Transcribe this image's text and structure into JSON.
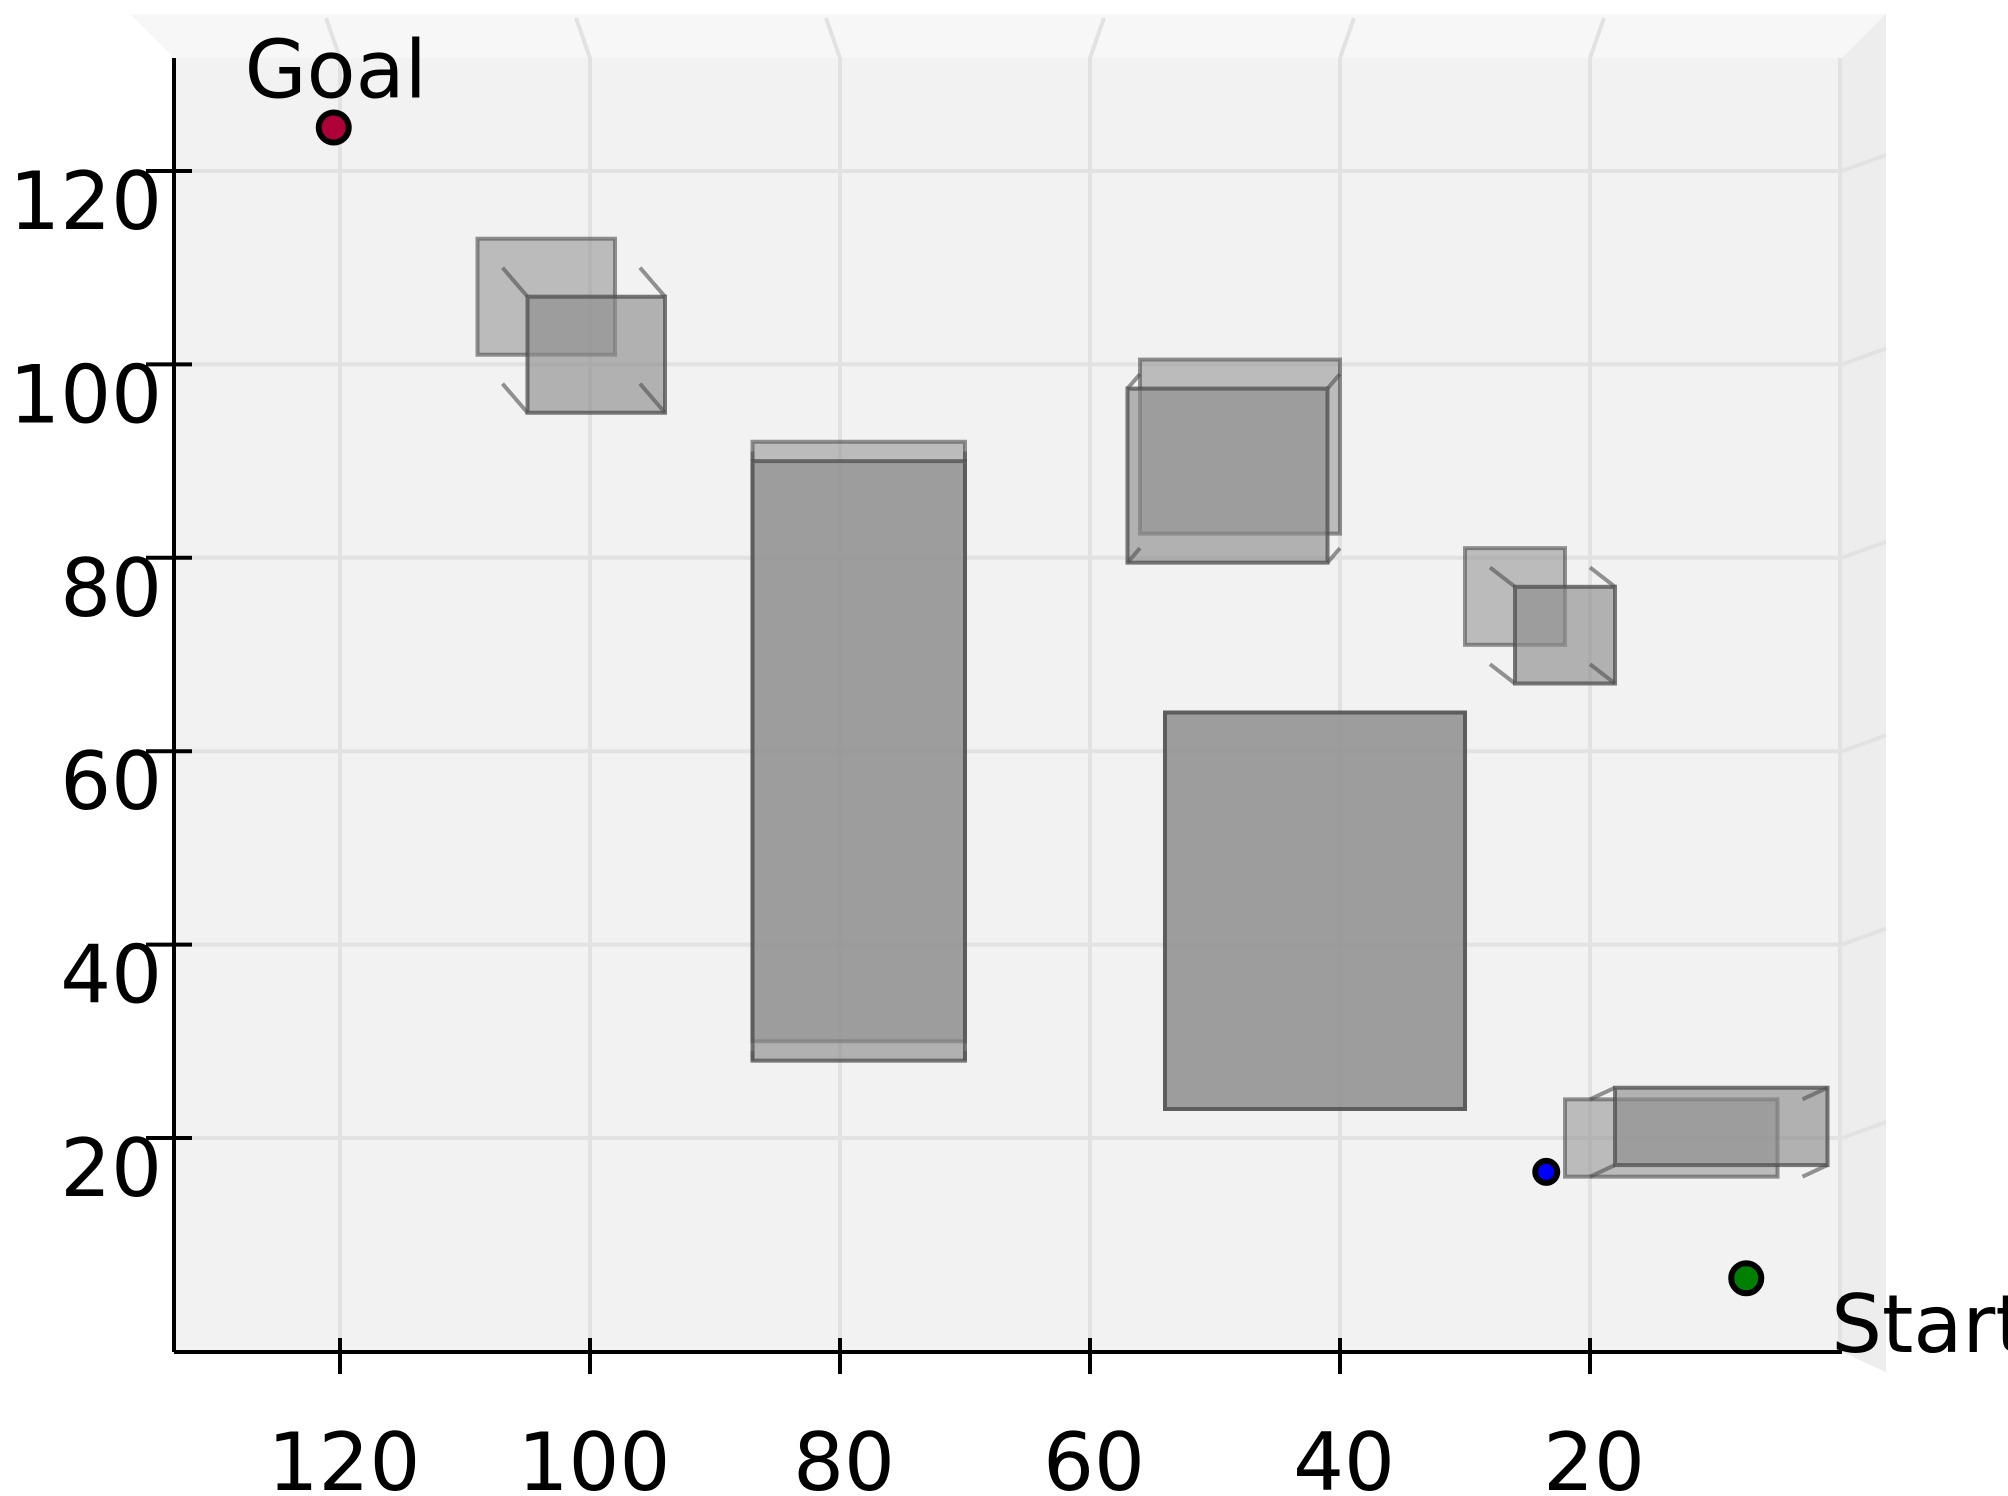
{
  "chart_data": {
    "type": "scatter",
    "title": "",
    "xlabel": "",
    "ylabel": "",
    "view": "top-down projection of a 3D scene",
    "x_inverted": true,
    "xlim": [
      0,
      131
    ],
    "ylim": [
      0,
      133
    ],
    "grid": true,
    "x_ticks": [
      120,
      100,
      80,
      60,
      40,
      20
    ],
    "y_ticks": [
      120,
      100,
      80,
      60,
      40,
      20
    ],
    "x_tick_labels": [
      "120",
      "100",
      "80",
      "60",
      "40",
      "20"
    ],
    "y_tick_labels": [
      "120",
      "100",
      "80",
      "60",
      "40",
      "20"
    ],
    "points": [
      {
        "label": "Goal",
        "x": 120.5,
        "y": 124.5,
        "color": "#b0003a"
      },
      {
        "label": "Start",
        "x": 7.5,
        "y": 5.5,
        "color": "#008000"
      },
      {
        "label": "",
        "x": 23.5,
        "y": 16.5,
        "color": "#0000ff"
      }
    ],
    "obstacles": [
      {
        "x": [
          96,
          107
        ],
        "y": [
          98,
          110
        ],
        "depth_shift": [
          -2,
          -3
        ]
      },
      {
        "x": [
          70,
          87
        ],
        "y": [
          29,
          91
        ],
        "depth_shift": [
          0,
          -1
        ]
      },
      {
        "x": [
          40,
          56
        ],
        "y": [
          81,
          99
        ],
        "depth_shift": [
          1,
          -1.5
        ]
      },
      {
        "x": [
          20,
          28
        ],
        "y": [
          69,
          79
        ],
        "depth_shift": [
          -2,
          -2
        ]
      },
      {
        "x": [
          30,
          54
        ],
        "y": [
          23,
          64
        ],
        "depth_shift": [
          0,
          0
        ]
      },
      {
        "x": [
          3,
          20
        ],
        "y": [
          16,
          24
        ],
        "depth_shift": [
          -2,
          1.2
        ]
      }
    ],
    "colors": {
      "pane": "#f2f2f2",
      "grid": "#e2e2e2",
      "obstacle_fill": "#8e8e8e",
      "obstacle_edge": "#4e4e4e",
      "axis": "#000000"
    }
  }
}
